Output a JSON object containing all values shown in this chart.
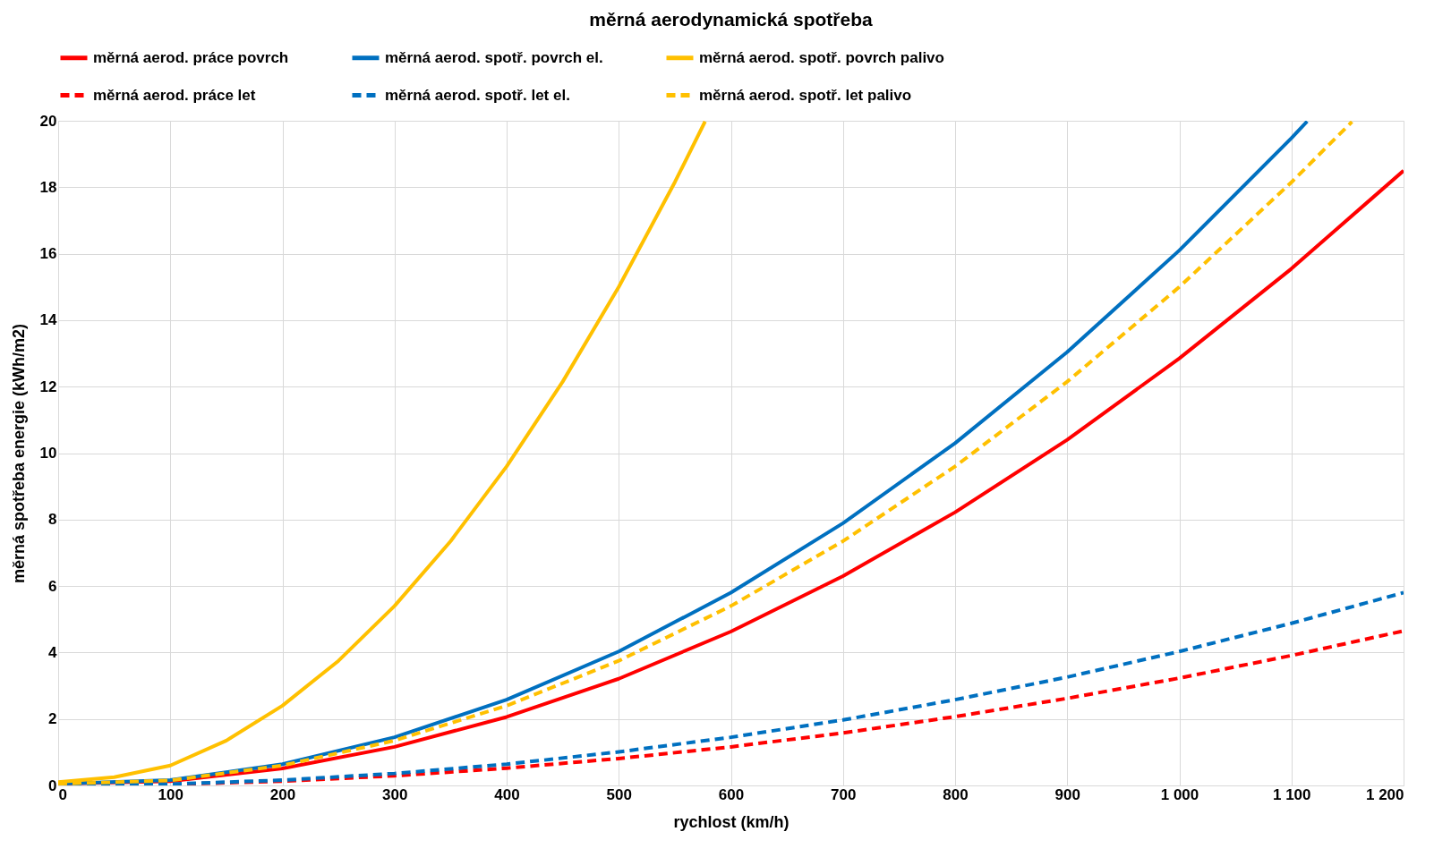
{
  "chart_data": {
    "type": "line",
    "title": "měrná aerodynamická spotřeba",
    "xlabel": "rychlost (km/h)",
    "ylabel": "měrná spotřeba energie (kWh/m2)",
    "xlim": [
      0,
      1200
    ],
    "ylim": [
      0,
      20
    ],
    "xticks": [
      0,
      100,
      200,
      300,
      400,
      500,
      600,
      700,
      800,
      900,
      {
        "value": 1000,
        "label": "1 000"
      },
      {
        "value": 1100,
        "label": "1 100"
      },
      {
        "value": 1200,
        "label": "1 200"
      }
    ],
    "yticks": [
      0,
      2,
      4,
      6,
      8,
      10,
      12,
      14,
      16,
      18,
      20
    ],
    "grid": true,
    "legend": "top",
    "marker": "none",
    "series": [
      {
        "name": "měrná aerod. práce povrch",
        "color": "#ff0000",
        "line_style": "solid",
        "x": [
          0,
          100,
          200,
          300,
          400,
          500,
          600,
          700,
          800,
          900,
          1000,
          1100,
          1200
        ],
        "values": [
          0.05,
          0.13,
          0.51,
          1.16,
          2.06,
          3.21,
          4.63,
          6.3,
          8.22,
          10.4,
          12.85,
          15.55,
          18.5
        ]
      },
      {
        "name": "měrná aerod. spotř. povrch el.",
        "color": "#0070c0",
        "line_style": "solid",
        "x": [
          0,
          100,
          200,
          300,
          400,
          500,
          600,
          700,
          800,
          900,
          1000,
          1100,
          1114
        ],
        "values": [
          0.05,
          0.16,
          0.64,
          1.45,
          2.58,
          4.03,
          5.8,
          7.89,
          10.3,
          13.04,
          16.1,
          19.48,
          19.98
        ]
      },
      {
        "name": "měrná aerod. spotř.  povrch palivo",
        "color": "#ffc000",
        "line_style": "solid",
        "x": [
          0,
          50,
          100,
          150,
          200,
          250,
          300,
          350,
          400,
          450,
          500,
          550,
          577
        ],
        "values": [
          0.1,
          0.25,
          0.6,
          1.35,
          2.4,
          3.75,
          5.4,
          7.35,
          9.6,
          12.15,
          15.0,
          18.15,
          19.98
        ]
      },
      {
        "name": "měrná aerod. práce let",
        "color": "#ff0000",
        "line_style": "dashed",
        "x": [
          0,
          100,
          200,
          300,
          400,
          500,
          600,
          700,
          800,
          900,
          1000,
          1100,
          1200
        ],
        "values": [
          0.0,
          0.03,
          0.13,
          0.29,
          0.52,
          0.81,
          1.16,
          1.58,
          2.07,
          2.62,
          3.23,
          3.91,
          4.65
        ]
      },
      {
        "name": "měrná aerod. spotř. let el.",
        "color": "#0070c0",
        "line_style": "dashed",
        "x": [
          0,
          100,
          200,
          300,
          400,
          500,
          600,
          700,
          800,
          900,
          1000,
          1100,
          1200
        ],
        "values": [
          0.0,
          0.04,
          0.16,
          0.36,
          0.64,
          1.01,
          1.45,
          1.97,
          2.58,
          3.26,
          4.03,
          4.88,
          5.8
        ]
      },
      {
        "name": "měrná aerod. spotř.  let palivo",
        "color": "#ffc000",
        "line_style": "dashed",
        "x": [
          0,
          100,
          200,
          300,
          400,
          500,
          600,
          700,
          800,
          900,
          1000,
          1100,
          1154
        ],
        "values": [
          0.05,
          0.15,
          0.6,
          1.35,
          2.4,
          3.75,
          5.4,
          7.35,
          9.6,
          12.15,
          15.0,
          18.15,
          19.97
        ]
      }
    ]
  }
}
